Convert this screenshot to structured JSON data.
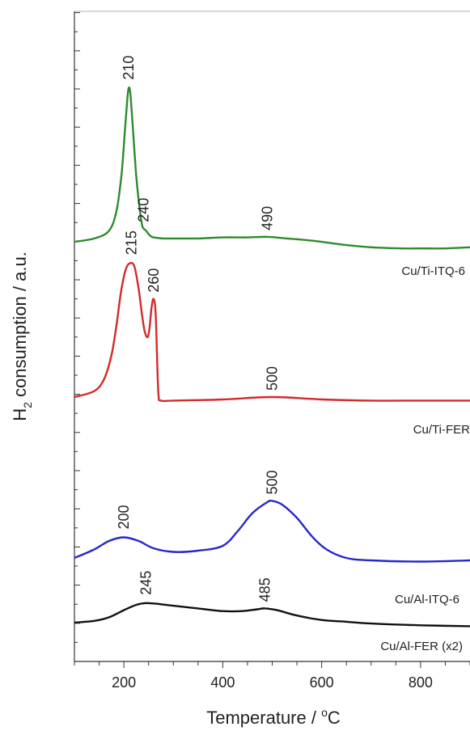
{
  "chart_data": {
    "type": "line",
    "xlabel": "Temperature / °C",
    "ylabel": "H2 consumption / a.u.",
    "ylabel_main": "H",
    "ylabel_sub": "2",
    "ylabel_rest": " consumption / a.u.",
    "xlabel_main": "Temperature / ",
    "xlabel_sup": "o",
    "xlabel_unit": "C",
    "xlim": [
      100,
      900
    ],
    "x_ticks": [
      200,
      400,
      600,
      800
    ],
    "grid": false,
    "series": [
      {
        "name": "Cu/Ti-ITQ-6",
        "color": "#2e8b2e",
        "peak_labels": [
          {
            "text": "210",
            "x": 210
          },
          {
            "text": "240",
            "x": 240
          },
          {
            "text": "490",
            "x": 490
          }
        ],
        "x": [
          100,
          140,
          170,
          185,
          195,
          202,
          207,
          210,
          213,
          218,
          225,
          232,
          237,
          240,
          245,
          252,
          260,
          280,
          300,
          350,
          400,
          450,
          490,
          530,
          580,
          650,
          700,
          760,
          800,
          850,
          900
        ],
        "y": [
          0.0,
          0.03,
          0.1,
          0.28,
          0.6,
          1.0,
          1.3,
          1.4,
          1.35,
          1.05,
          0.6,
          0.3,
          0.15,
          0.12,
          0.1,
          0.06,
          0.04,
          0.03,
          0.03,
          0.03,
          0.04,
          0.04,
          0.045,
          0.03,
          0.01,
          -0.03,
          -0.05,
          -0.06,
          -0.06,
          -0.06,
          -0.05
        ]
      },
      {
        "name": "Cu/Ti-FER",
        "color": "#d42a2a",
        "peak_labels": [
          {
            "text": "215",
            "x": 215
          },
          {
            "text": "260",
            "x": 260
          },
          {
            "text": "500",
            "x": 500
          }
        ],
        "x": [
          100,
          140,
          160,
          175,
          185,
          195,
          205,
          215,
          222,
          230,
          237,
          242,
          248,
          252,
          256,
          260,
          264,
          267,
          270,
          275,
          300,
          400,
          500,
          600,
          700,
          800,
          900
        ],
        "y": [
          0.0,
          0.05,
          0.15,
          0.35,
          0.6,
          0.9,
          1.08,
          1.12,
          1.08,
          0.9,
          0.68,
          0.55,
          0.5,
          0.58,
          0.75,
          0.82,
          0.72,
          0.35,
          0.02,
          -0.03,
          -0.03,
          -0.02,
          0.0,
          -0.02,
          -0.03,
          -0.03,
          -0.03
        ]
      },
      {
        "name": "Cu/Al-ITQ-6",
        "color": "#2727cc",
        "peak_labels": [
          {
            "text": "200",
            "x": 200
          },
          {
            "text": "500",
            "x": 500
          }
        ],
        "x": [
          100,
          140,
          170,
          200,
          230,
          260,
          300,
          350,
          400,
          430,
          460,
          490,
          500,
          520,
          550,
          580,
          610,
          650,
          700,
          800,
          900
        ],
        "y": [
          0.0,
          0.07,
          0.14,
          0.17,
          0.14,
          0.08,
          0.05,
          0.06,
          0.1,
          0.22,
          0.37,
          0.46,
          0.47,
          0.44,
          0.33,
          0.18,
          0.07,
          0.0,
          -0.02,
          -0.03,
          -0.02
        ]
      },
      {
        "name": "Cu/Al-FER (x2)",
        "color": "#111111",
        "peak_labels": [
          {
            "text": "245",
            "x": 245
          },
          {
            "text": "485",
            "x": 485
          }
        ],
        "x": [
          100,
          140,
          170,
          200,
          225,
          245,
          270,
          300,
          350,
          400,
          440,
          470,
          485,
          510,
          550,
          600,
          650,
          700,
          800,
          900
        ],
        "y": [
          0.0,
          0.02,
          0.06,
          0.14,
          0.2,
          0.22,
          0.21,
          0.19,
          0.16,
          0.13,
          0.13,
          0.15,
          0.16,
          0.14,
          0.08,
          0.03,
          0.01,
          -0.01,
          -0.03,
          -0.04
        ]
      }
    ]
  }
}
